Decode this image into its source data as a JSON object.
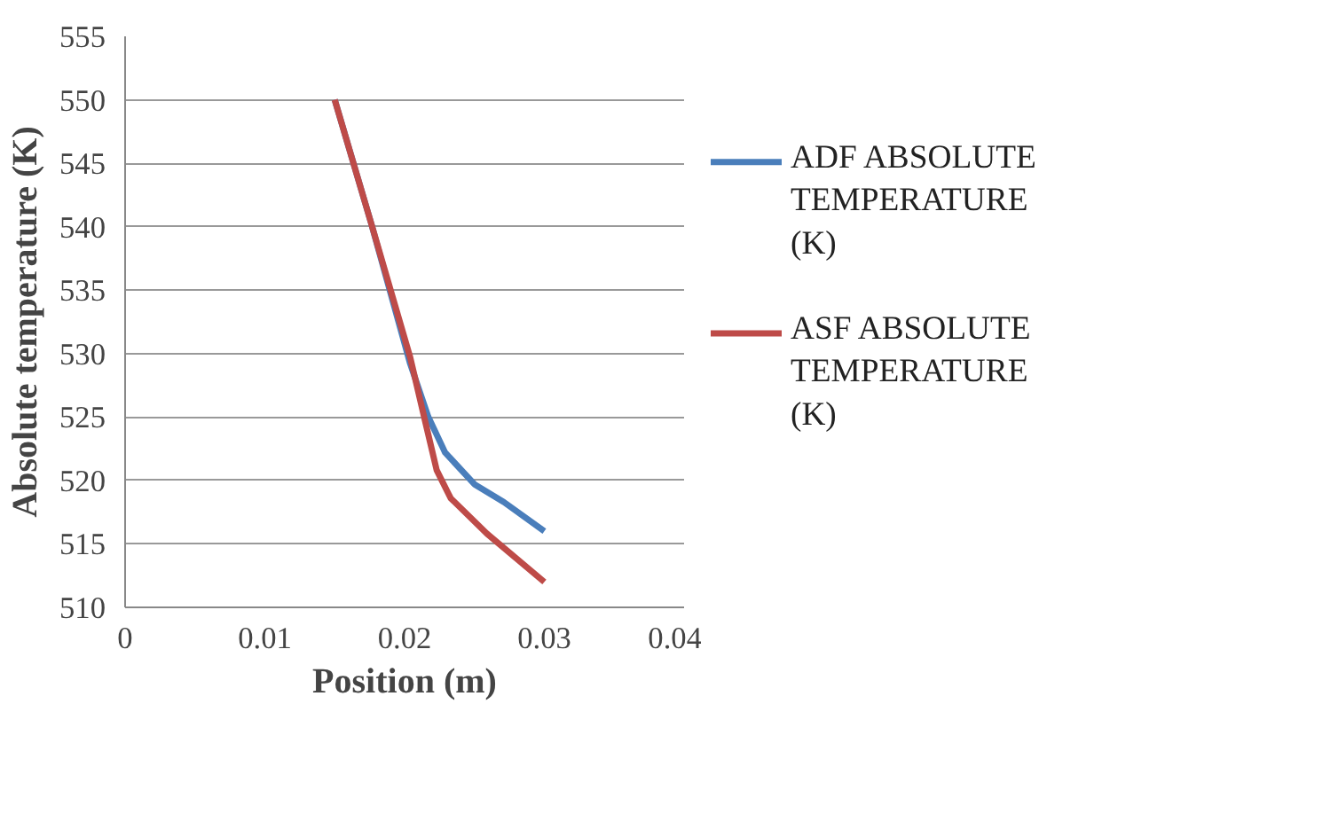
{
  "chart_data": {
    "type": "line",
    "xlabel": "Position (m)",
    "ylabel": "Absolute temperature (K)",
    "xlim": [
      0,
      0.04
    ],
    "xticks": [
      0,
      0.01,
      0.02,
      0.03,
      0.04
    ],
    "ylim": [
      510,
      555
    ],
    "yticks": [
      510,
      515,
      520,
      525,
      530,
      535,
      540,
      545,
      550,
      555
    ],
    "grid": "y",
    "legend": "right",
    "marker": "none",
    "line_style": "solid",
    "series": [
      {
        "name": "ADF ABSOLUTE TEMPERATURE (K)",
        "color": "#4a7ebb",
        "x": [
          0.015,
          0.0176,
          0.0204,
          0.0217,
          0.0229,
          0.025,
          0.0271,
          0.03
        ],
        "values": [
          550,
          540.3,
          529.2,
          525,
          522.2,
          519.7,
          518.3,
          516
        ]
      },
      {
        "name": "ASF ABSOLUTE TEMPERATURE (K)",
        "color": "#be4b48",
        "x": [
          0.015,
          0.0176,
          0.0204,
          0.0214,
          0.0223,
          0.0233,
          0.0259,
          0.03
        ],
        "values": [
          550,
          540.3,
          529.7,
          525,
          520.8,
          518.6,
          515.8,
          512
        ]
      }
    ]
  }
}
